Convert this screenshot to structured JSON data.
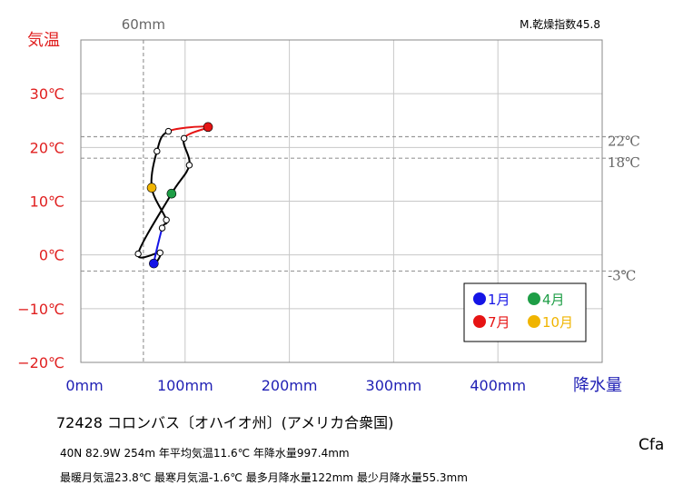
{
  "chart_data": {
    "type": "line",
    "x_axis": {
      "title": "降水量",
      "range": [
        0,
        500
      ],
      "ticks": [
        0,
        100,
        200,
        300,
        400
      ],
      "tick_labels": [
        "0mm",
        "100mm",
        "200mm",
        "300mm",
        "400mm"
      ],
      "color": "#1f1fb4"
    },
    "y_axis": {
      "title": "気温",
      "range": [
        -20,
        40
      ],
      "ticks": [
        -20,
        -10,
        0,
        10,
        20,
        30
      ],
      "tick_labels": [
        "−20℃",
        "−10℃",
        "0℃",
        "10℃",
        "20℃",
        "30℃"
      ],
      "color": "#e02020"
    },
    "grid": true,
    "reference_lines": {
      "vertical": [
        {
          "x": 60,
          "label": "60mm"
        }
      ],
      "horizontal": [
        {
          "y": 22,
          "label": "22℃"
        },
        {
          "y": 18,
          "label": "18℃"
        },
        {
          "y": -3,
          "label": "-3℃"
        }
      ]
    },
    "series": [
      {
        "points": [
          {
            "month": 1,
            "precip": 70,
            "temp": -1.6
          },
          {
            "month": 2,
            "precip": 76,
            "temp": 0.4
          },
          {
            "month": 3,
            "precip": 55,
            "temp": 0.2
          },
          {
            "month": 4,
            "precip": 87,
            "temp": 11.4
          },
          {
            "month": 5,
            "precip": 104,
            "temp": 16.7
          },
          {
            "month": 6,
            "precip": 99,
            "temp": 21.7
          },
          {
            "month": 7,
            "precip": 122,
            "temp": 23.8
          },
          {
            "month": 8,
            "precip": 84,
            "temp": 23.0
          },
          {
            "month": 9,
            "precip": 73,
            "temp": 19.3
          },
          {
            "month": 10,
            "precip": 68,
            "temp": 12.5
          },
          {
            "month": 11,
            "precip": 82,
            "temp": 6.5
          },
          {
            "month": 12,
            "precip": 78,
            "temp": 5.0
          }
        ]
      }
    ],
    "legend": {
      "position": "bottom-right",
      "items": [
        {
          "label": "1月",
          "color": "#1414e6",
          "month": 1
        },
        {
          "label": "4月",
          "color": "#1e9e46",
          "month": 4
        },
        {
          "label": "7月",
          "color": "#e61414",
          "month": 7
        },
        {
          "label": "10月",
          "color": "#f0b400",
          "month": 10
        }
      ]
    },
    "annotation": "M.乾燥指数45.8"
  },
  "info": {
    "station": "72428  コロンバス〔オハイオ州〕(アメリカ合衆国)",
    "line1": "40N  82.9W 254m  年平均気温11.6℃ 年降水量997.4mm",
    "line2": "最暖月気温23.8℃ 最寒月気温-1.6℃ 最多月降水量122mm 最少月降水量55.3mm",
    "climate": "Cfa"
  }
}
